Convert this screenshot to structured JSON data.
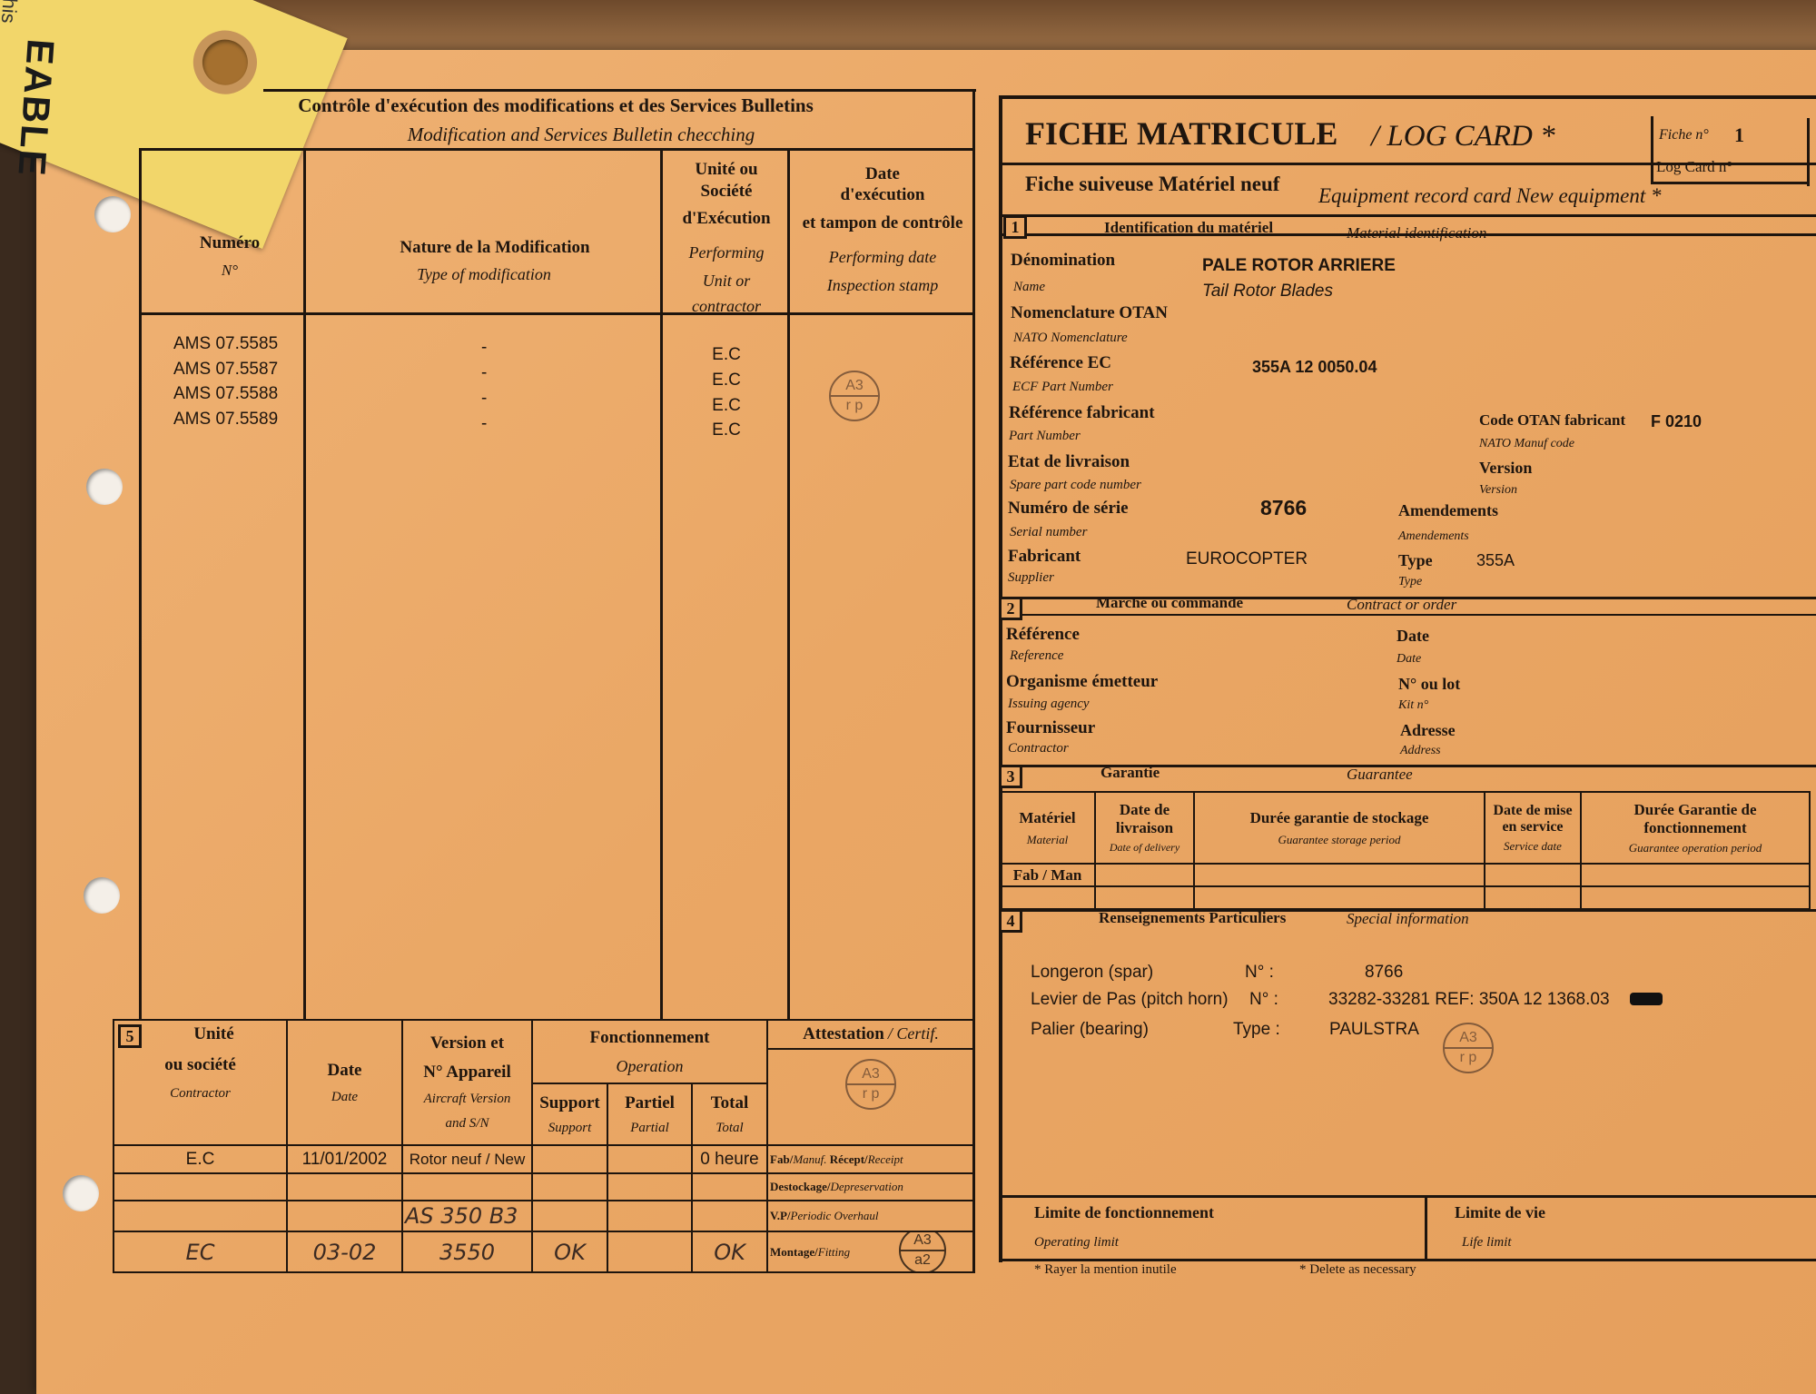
{
  "tag": {
    "text": "EABLE",
    "text2": "ed on this"
  },
  "left": {
    "title": "Contrôle d'exécution des modifications et des Services Bulletins",
    "subtitle": "Modification and Services Bulletin checching",
    "headers": {
      "numero": "Numéro",
      "numero_en": "N°",
      "nature": "Nature de la Modification",
      "nature_en": "Type of modification",
      "unite": [
        "Unité ou",
        "Société",
        "d'Exécution"
      ],
      "unite_en": [
        "Performing",
        "Unit  or",
        "contractor"
      ],
      "date": [
        "Date",
        "d'exécution",
        "et tampon de contrôle"
      ],
      "date_en": [
        "Performing date",
        "Inspection stamp"
      ]
    },
    "rows": [
      {
        "numero": "AMS 07.5585",
        "nature": "-",
        "unite": "E.C"
      },
      {
        "numero": "AMS 07.5587",
        "nature": "-",
        "unite": "E.C"
      },
      {
        "numero": "AMS 07.5588",
        "nature": "-",
        "unite": "E.C"
      },
      {
        "numero": "AMS 07.5589",
        "nature": "-",
        "unite": "E.C"
      }
    ],
    "stamp": {
      "top": "A3",
      "bottom": "r p"
    },
    "section5": {
      "number": "5",
      "headers": {
        "unite": "Unité",
        "unite2": "ou société",
        "unite_en": "Contractor",
        "date": "Date",
        "date_en": "Date",
        "version": "Version et",
        "version2": "N° Appareil",
        "version_en": "Aircraft Version",
        "version_en2": "and S/N",
        "fonct": "Fonctionnement",
        "fonct_en": "Operation",
        "support": "Support",
        "support_en": "Support",
        "partiel": "Partiel",
        "partiel_en": "Partial",
        "total": "Total",
        "total_en": "Total",
        "attest": "Attestation",
        "attest_en": "/ Certif."
      },
      "rows": [
        {
          "unite": "E.C",
          "date": "11/01/2002",
          "version": "Rotor neuf / New",
          "support": "",
          "partiel": "",
          "total": "0 heure",
          "attest": "Fab/",
          "attest_en": "Manuf.",
          "attest2": " Récept/",
          "attest2_en": "Receipt"
        },
        {
          "unite": "",
          "date": "",
          "version": "",
          "support": "",
          "partiel": "",
          "total": "",
          "attest": "Destockage/",
          "attest_en": "Depreservation"
        },
        {
          "unite": "",
          "date": "",
          "version": "AS 350 B3",
          "support": "",
          "partiel": "",
          "total": "",
          "attest": "V.P/",
          "attest_en": "Periodic Overhaul"
        },
        {
          "unite": "EC",
          "date": "03-02",
          "version": "3550",
          "support": "OK",
          "partiel": "",
          "total": "OK",
          "attest": "Montage/",
          "attest_en": "Fitting"
        }
      ],
      "stamp": {
        "top": "A3",
        "bottom": "r p"
      },
      "stamp2": {
        "top": "A3",
        "bottom": "a2"
      }
    }
  },
  "right": {
    "title": "FICHE MATRICULE",
    "title_en": "/ LOG CARD *",
    "fiche_label": "Fiche n°",
    "fiche_value": "1",
    "logcard_label": "Log Card n°",
    "subtitle": "Fiche suiveuse Matériel neuf",
    "subtitle_en": "Equipment record card New equipment  *",
    "s1": {
      "number": "1",
      "title": "Identification du matériel",
      "title_en": "Material identification",
      "denomination": "Dénomination",
      "denomination_en": "Name",
      "denomination_value": "PALE ROTOR ARRIERE",
      "denomination_value_en": "Tail Rotor Blades",
      "nomenclature": "Nomenclature OTAN",
      "nomenclature_en": "NATO Nomenclature",
      "ref_ec": "Référence EC",
      "ref_ec_en": "ECF Part Number",
      "ref_ec_value": "355A 12 0050.04",
      "ref_fab": "Référence fabricant",
      "ref_fab_en": "Part Number",
      "code_otan": "Code OTAN fabricant",
      "code_otan_en": "NATO Manuf code",
      "code_otan_value": "F 0210",
      "etat": "Etat de livraison",
      "etat_en": "Spare part code number",
      "version": "Version",
      "version_en": "Version",
      "serie": "Numéro de série",
      "serie_en": "Serial number",
      "serie_value": "8766",
      "amend": "Amendements",
      "amend_en": "Amendements",
      "fabricant": "Fabricant",
      "fabricant_en": "Supplier",
      "fabricant_value": "EUROCOPTER",
      "type": "Type",
      "type_en": "Type",
      "type_value": "355A"
    },
    "s2": {
      "number": "2",
      "title": "Marché ou commande",
      "title_en": "Contract or order",
      "ref": "Référence",
      "ref_en": "Reference",
      "org": "Organisme émetteur",
      "org_en": "Issuing agency",
      "fourn": "Fournisseur",
      "fourn_en": "Contractor",
      "date": "Date",
      "date_en": "Date",
      "lot": "N° ou lot",
      "lot_en": "Kit n°",
      "adresse": "Adresse",
      "adresse_en": "Address"
    },
    "s3": {
      "number": "3",
      "title": "Garantie",
      "title_en": "Guarantee",
      "cols": [
        {
          "fr": "Matériel",
          "en": "Material"
        },
        {
          "fr": "Date de livraison",
          "en": "Date of delivery"
        },
        {
          "fr": "Durée garantie de stockage",
          "en": "Guarantee storage period"
        },
        {
          "fr": "Date de mise en service",
          "en": "Service date"
        },
        {
          "fr": "Durée Garantie de fonctionnement",
          "en": "Guarantee operation period"
        }
      ],
      "row_label": "Fab / Man"
    },
    "s4": {
      "number": "4",
      "title": "Renseignements Particuliers",
      "title_en": "Special information",
      "lines": [
        {
          "label": "Longeron (spar)",
          "key": "N° :",
          "value": "8766"
        },
        {
          "label": "Levier de Pas (pitch horn)",
          "key": "N° :",
          "value": "33282-33281 REF: 350A 12 1368.03"
        },
        {
          "label": "Palier (bearing)",
          "key": "Type :",
          "value": "PAULSTRA"
        }
      ],
      "stamp": {
        "top": "A3",
        "bottom": "r p"
      }
    },
    "limits": {
      "op": "Limite de fonctionnement",
      "op_en": "Operating limit",
      "life": "Limite de vie",
      "life_en": "Life limit"
    },
    "footnote_fr": "*  Rayer la mention inutile",
    "footnote_en": "*  Delete as necessary"
  }
}
